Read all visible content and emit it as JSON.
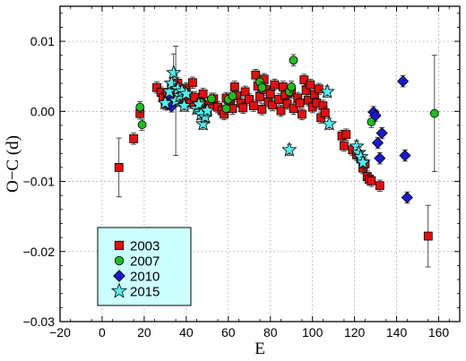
{
  "chart_data": {
    "type": "scatter",
    "xlabel": "E",
    "ylabel": "O−C (d)",
    "xlim": [
      -20,
      170
    ],
    "ylim": [
      -0.03,
      0.015
    ],
    "x_ticks": [
      -20,
      0,
      20,
      40,
      60,
      80,
      100,
      120,
      140,
      160
    ],
    "y_ticks": [
      -0.03,
      -0.02,
      -0.01,
      0.0,
      0.01
    ],
    "x_tick_labels": [
      "−20",
      "0",
      "20",
      "40",
      "60",
      "80",
      "100",
      "120",
      "140",
      "160"
    ],
    "y_tick_labels": [
      "−0.03",
      "−0.02",
      "−0.01",
      "0.00",
      "0.01"
    ],
    "grid": true,
    "legend_position": "bottom-left",
    "series": [
      {
        "name": "2003",
        "marker": "square",
        "color": "#e01010",
        "points": [
          {
            "x": 8,
            "y": -0.008,
            "err": 0.0042
          },
          {
            "x": 15,
            "y": -0.0039
          },
          {
            "x": 18,
            "y": -0.0003
          },
          {
            "x": 26,
            "y": 0.0034
          },
          {
            "x": 28,
            "y": 0.0027
          },
          {
            "x": 29,
            "y": 0.0019
          },
          {
            "x": 30,
            "y": 0.001
          },
          {
            "x": 31,
            "y": 0.0025
          },
          {
            "x": 33,
            "y": 0.0036
          },
          {
            "x": 34,
            "y": 0.0023
          },
          {
            "x": 35,
            "y": 0.0015
          },
          {
            "x": 36,
            "y": 0.004
          },
          {
            "x": 37,
            "y": 0.0029
          },
          {
            "x": 38,
            "y": 0.0018
          },
          {
            "x": 40,
            "y": 0.0033
          },
          {
            "x": 41,
            "y": 0.0022
          },
          {
            "x": 42,
            "y": 0.0012
          },
          {
            "x": 43,
            "y": 0.0041
          },
          {
            "x": 44,
            "y": 0.002
          },
          {
            "x": 47,
            "y": 0.0013
          },
          {
            "x": 48,
            "y": 0.0025
          },
          {
            "x": 50,
            "y": 0.0002
          },
          {
            "x": 51,
            "y": 0.001
          },
          {
            "x": 53,
            "y": 0.0018
          },
          {
            "x": 55,
            "y": 0.0006
          },
          {
            "x": 57,
            "y": 0.0001
          },
          {
            "x": 58,
            "y": -0.0004
          },
          {
            "x": 59,
            "y": 0.0019
          },
          {
            "x": 61,
            "y": 0.0011
          },
          {
            "x": 62,
            "y": 0.0004
          },
          {
            "x": 63,
            "y": 0.0035
          },
          {
            "x": 64,
            "y": 0.0022
          },
          {
            "x": 66,
            "y": 0.0012
          },
          {
            "x": 67,
            "y": 0.0005
          },
          {
            "x": 68,
            "y": 0.0028
          },
          {
            "x": 70,
            "y": 0.0017
          },
          {
            "x": 72,
            "y": 0.0008
          },
          {
            "x": 73,
            "y": 0.0052
          },
          {
            "x": 74,
            "y": 0.0036
          },
          {
            "x": 75,
            "y": 0.0021
          },
          {
            "x": 76,
            "y": 0.0003
          },
          {
            "x": 77,
            "y": 0.0046
          },
          {
            "x": 78,
            "y": 0.0031
          },
          {
            "x": 79,
            "y": 0.0014
          },
          {
            "x": 80,
            "y": 0.0025
          },
          {
            "x": 81,
            "y": 0.0009
          },
          {
            "x": 82,
            "y": 0.0038
          },
          {
            "x": 84,
            "y": 0.0017
          },
          {
            "x": 85,
            "y": 0.0001
          },
          {
            "x": 86,
            "y": 0.0035
          },
          {
            "x": 87,
            "y": 0.0023
          },
          {
            "x": 88,
            "y": 0.0011
          },
          {
            "x": 90,
            "y": 0.0027
          },
          {
            "x": 91,
            "y": 0.0004
          },
          {
            "x": 93,
            "y": 0.0019
          },
          {
            "x": 94,
            "y": 0.0012
          },
          {
            "x": 95,
            "y": -0.0004
          },
          {
            "x": 96,
            "y": 0.0045
          },
          {
            "x": 97,
            "y": 0.003
          },
          {
            "x": 98,
            "y": 0.0016
          },
          {
            "x": 99,
            "y": 0.0038
          },
          {
            "x": 100,
            "y": 0.0006
          },
          {
            "x": 101,
            "y": 0.0024
          },
          {
            "x": 102,
            "y": 0.0012
          },
          {
            "x": 103,
            "y": 0.0032
          },
          {
            "x": 104,
            "y": -0.0009
          },
          {
            "x": 105,
            "y": 0.0008
          },
          {
            "x": 106,
            "y": -0.0002
          },
          {
            "x": 114,
            "y": -0.0035
          },
          {
            "x": 115,
            "y": -0.0049
          },
          {
            "x": 116,
            "y": -0.0033
          },
          {
            "x": 119,
            "y": -0.0055
          },
          {
            "x": 121,
            "y": -0.0062
          },
          {
            "x": 123,
            "y": -0.0068
          },
          {
            "x": 124,
            "y": -0.0081
          },
          {
            "x": 125,
            "y": -0.0075
          },
          {
            "x": 126,
            "y": -0.0093
          },
          {
            "x": 127,
            "y": -0.0097
          },
          {
            "x": 128,
            "y": -0.0099
          },
          {
            "x": 132,
            "y": -0.0106
          },
          {
            "x": 155,
            "y": -0.0178,
            "err": 0.0044
          }
        ]
      },
      {
        "name": "2007",
        "marker": "circle",
        "color": "#22bb22",
        "points": [
          {
            "x": 18,
            "y": 0.0006
          },
          {
            "x": 19,
            "y": -0.0019
          },
          {
            "x": 47,
            "y": 0.0012
          },
          {
            "x": 48,
            "y": -0.0002
          },
          {
            "x": 52,
            "y": 0.0018
          },
          {
            "x": 59,
            "y": 0.0004
          },
          {
            "x": 60,
            "y": 0.0017
          },
          {
            "x": 62,
            "y": 0.0022
          },
          {
            "x": 75,
            "y": 0.0042
          },
          {
            "x": 76,
            "y": 0.0034
          },
          {
            "x": 89,
            "y": 0.0028
          },
          {
            "x": 90,
            "y": 0.0035
          },
          {
            "x": 91,
            "y": 0.0073
          },
          {
            "x": 128,
            "y": -0.0015
          },
          {
            "x": 158,
            "y": -0.0003,
            "err": 0.0083
          }
        ]
      },
      {
        "name": "2010",
        "marker": "diamond",
        "color": "#1a1acc",
        "points": [
          {
            "x": 31,
            "y": 0.001
          },
          {
            "x": 32,
            "y": 0.0022
          },
          {
            "x": 33,
            "y": 0.0007
          },
          {
            "x": 129,
            "y": -0.0001
          },
          {
            "x": 130,
            "y": -0.0006
          },
          {
            "x": 131,
            "y": -0.0045
          },
          {
            "x": 132,
            "y": -0.0067
          },
          {
            "x": 133,
            "y": -0.0031
          },
          {
            "x": 143,
            "y": 0.0043
          },
          {
            "x": 144,
            "y": -0.0063
          },
          {
            "x": 145,
            "y": -0.0123
          }
        ]
      },
      {
        "name": "2015",
        "marker": "star",
        "color": "#55eeee",
        "points": [
          {
            "x": 30,
            "y": 0.0012
          },
          {
            "x": 32,
            "y": 0.0028
          },
          {
            "x": 33,
            "y": 0.004
          },
          {
            "x": 34,
            "y": 0.0055,
            "err": 0.0027
          },
          {
            "x": 35,
            "y": 0.0015,
            "err": 0.0078
          },
          {
            "x": 36,
            "y": 0.0032
          },
          {
            "x": 37,
            "y": 0.0022
          },
          {
            "x": 38,
            "y": 0.0029
          },
          {
            "x": 39,
            "y": 0.0008
          },
          {
            "x": 40,
            "y": 0.0025
          },
          {
            "x": 45,
            "y": 0.0004
          },
          {
            "x": 46,
            "y": 0.001
          },
          {
            "x": 47,
            "y": -0.0004
          },
          {
            "x": 48,
            "y": -0.0018
          },
          {
            "x": 49,
            "y": -0.0008
          },
          {
            "x": 50,
            "y": 0.0001
          },
          {
            "x": 89,
            "y": -0.0055
          },
          {
            "x": 107,
            "y": 0.0028
          },
          {
            "x": 108,
            "y": -0.0018
          },
          {
            "x": 121,
            "y": -0.005
          },
          {
            "x": 122,
            "y": -0.0059
          },
          {
            "x": 123,
            "y": -0.0065
          },
          {
            "x": 124,
            "y": -0.0073
          }
        ]
      }
    ]
  }
}
